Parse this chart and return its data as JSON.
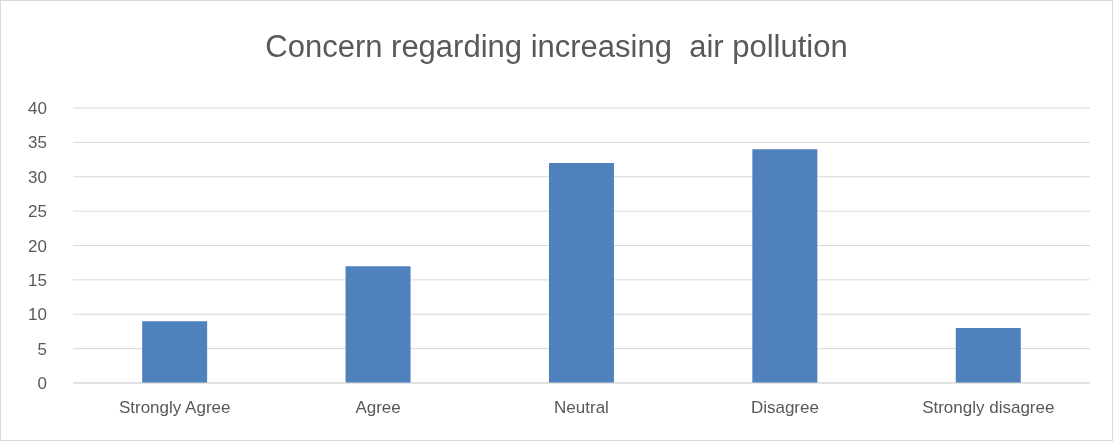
{
  "chart_data": {
    "type": "bar",
    "title": "Concern regarding increasing  air pollution",
    "categories": [
      "Strongly Agree",
      "Agree",
      "Neutral",
      "Disagree",
      "Strongly disagree"
    ],
    "values": [
      9,
      17,
      32,
      34,
      8
    ],
    "color": "#4f81bd",
    "ylim": [
      0,
      40
    ],
    "yticks": [
      0,
      5,
      10,
      15,
      20,
      25,
      30,
      35,
      40
    ],
    "grid": "y"
  }
}
